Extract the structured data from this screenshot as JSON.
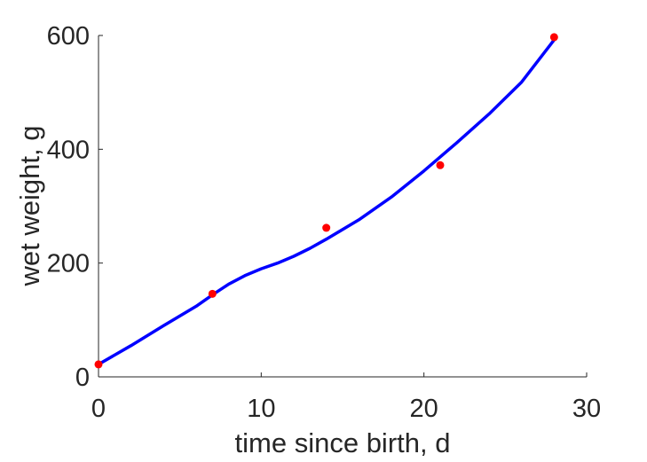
{
  "chart_data": {
    "type": "line",
    "title": "",
    "xlabel": "time since birth, d",
    "ylabel": "wet weight, g",
    "xlim": [
      0,
      30
    ],
    "ylim": [
      0,
      600
    ],
    "xticks": [
      0,
      10,
      20,
      30
    ],
    "yticks": [
      0,
      200,
      400,
      600
    ],
    "grid": false,
    "legend": "none",
    "series": [
      {
        "type": "scatter",
        "color": "#ff0000",
        "x": [
          0,
          7,
          14,
          21,
          28
        ],
        "y": [
          22,
          146,
          262,
          372,
          597
        ]
      },
      {
        "type": "line",
        "color": "#0000ff",
        "x": [
          0,
          2,
          4,
          6,
          7,
          8,
          9,
          10,
          11,
          12,
          13,
          14,
          16,
          18,
          20,
          22,
          24,
          26,
          28
        ],
        "y": [
          22,
          55,
          90,
          124,
          144,
          163,
          178,
          190,
          200,
          212,
          226,
          242,
          276,
          316,
          362,
          411,
          462,
          518,
          592
        ]
      }
    ]
  }
}
